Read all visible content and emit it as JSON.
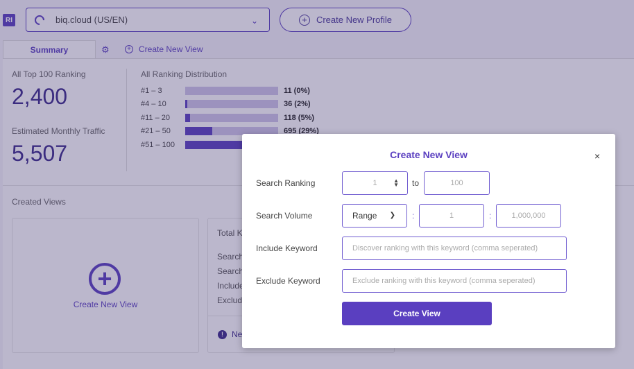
{
  "logo": {
    "text": "RI"
  },
  "profile": {
    "selected": "biq.cloud (US/EN)"
  },
  "create_profile": {
    "label": "Create New Profile"
  },
  "tabs": {
    "summary": "Summary",
    "create_view": "Create New View"
  },
  "stats": {
    "top100_label": "All Top 100 Ranking",
    "top100_value": "2,400",
    "traffic_label": "Estimated Monthly Traffic",
    "traffic_value": "5,507"
  },
  "distribution": {
    "title": "All Ranking Distribution",
    "rows": [
      {
        "label": "#1 – 3",
        "value": "11 (0%)",
        "fraction": 0.0
      },
      {
        "label": "#4 – 10",
        "value": "36 (2%)",
        "fraction": 0.02
      },
      {
        "label": "#11 – 20",
        "value": "118 (5%)",
        "fraction": 0.05
      },
      {
        "label": "#21 – 50",
        "value": "695 (29%)",
        "fraction": 0.29
      },
      {
        "label": "#51 – 100",
        "value": "",
        "fraction": 0.64
      }
    ]
  },
  "created_views": {
    "label": "Created Views",
    "create_card_label": "Create New View",
    "view_card": {
      "line1": "Total K",
      "line2": "Search",
      "line3": "Search",
      "line4": "Include",
      "line5": "Exclude",
      "footer": "New"
    }
  },
  "modal": {
    "title": "Create New View",
    "close": "×",
    "search_ranking": {
      "label": "Search Ranking",
      "from": "1",
      "to_word": "to",
      "to": "100"
    },
    "search_volume": {
      "label": "Search Volume",
      "mode": "Range",
      "min": "1",
      "max": "1,000,000"
    },
    "include_keyword": {
      "label": "Include Keyword",
      "placeholder": "Discover ranking with this keyword (comma seperated)"
    },
    "exclude_keyword": {
      "label": "Exclude Keyword",
      "placeholder": "Exclude ranking with this keyword (comma seperated)"
    },
    "submit": "Create View"
  },
  "colors": {
    "accent": "#5a3fc0",
    "accent_light": "#cfc6ea",
    "number": "#3b2a8a"
  }
}
